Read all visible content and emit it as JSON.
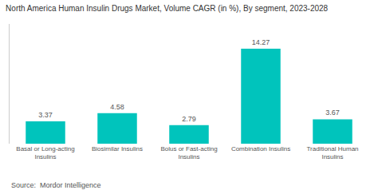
{
  "chart_data": {
    "type": "bar",
    "title": "North America Human Insulin Drugs Market, Volume CAGR (in %), By segment, 2023-2028",
    "categories": [
      "Basal or Long-acting\nInsulins",
      "Biosimilar Insulins",
      "Bolus or Fast-acting\nInsulins",
      "Combination Insulins",
      "Traditional Human\nInsulins"
    ],
    "values": [
      3.37,
      4.58,
      2.79,
      14.27,
      3.67
    ],
    "color": "#00C4BC",
    "ylim": [
      0,
      18
    ],
    "grid": false,
    "data_labels": true,
    "tick_labels": "x",
    "annotations": [
      "Source:  Mordor Intelligence"
    ]
  }
}
